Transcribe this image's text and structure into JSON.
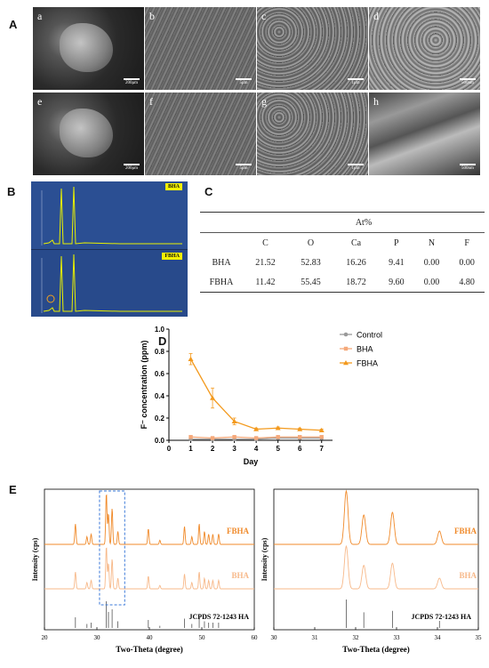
{
  "panels": {
    "A": "A",
    "B": "B",
    "C": "C",
    "D": "D",
    "E": "E"
  },
  "sem_images": [
    {
      "label": "a",
      "scale": "200μm",
      "tone": "dark-smooth"
    },
    {
      "label": "b",
      "scale": "5μm",
      "tone": "rough"
    },
    {
      "label": "c",
      "scale": "1μm",
      "tone": "grainy"
    },
    {
      "label": "d",
      "scale": "500nm",
      "tone": "grainy-light"
    },
    {
      "label": "e",
      "scale": "200μm",
      "tone": "dark-smooth"
    },
    {
      "label": "f",
      "scale": "5μm",
      "tone": "rough"
    },
    {
      "label": "g",
      "scale": "1μm",
      "tone": "grainy"
    },
    {
      "label": "h",
      "scale": "500nm",
      "tone": "crystal"
    }
  ],
  "eds": {
    "top_label": "BHA",
    "bottom_label": "FBHA",
    "background": "#2a4d8f",
    "trace_color": "#e8f000"
  },
  "table": {
    "group_header": "At%",
    "columns": [
      "C",
      "O",
      "Ca",
      "P",
      "N",
      "F"
    ],
    "rows": [
      {
        "name": "BHA",
        "values": [
          "21.52",
          "52.83",
          "16.26",
          "9.41",
          "0.00",
          "0.00"
        ]
      },
      {
        "name": "FBHA",
        "values": [
          "11.42",
          "55.45",
          "18.72",
          "9.60",
          "0.00",
          "4.80"
        ]
      }
    ]
  },
  "chart_data": [
    {
      "type": "line",
      "panel": "D",
      "xlabel": "Day",
      "ylabel": "F⁻ concentration (ppm)",
      "x": [
        1,
        2,
        3,
        4,
        5,
        6,
        7
      ],
      "xticks": [
        "0",
        "1",
        "2",
        "3",
        "4",
        "5",
        "6",
        "7"
      ],
      "yticks": [
        "0.0",
        "0.2",
        "0.4",
        "0.6",
        "0.8",
        "1.0"
      ],
      "xlim": [
        0,
        7.5
      ],
      "ylim": [
        0,
        1.0
      ],
      "legend_position": "top-right",
      "series": [
        {
          "name": "Control",
          "color": "#999999",
          "marker": "circle",
          "values": [
            0.01,
            0.01,
            0.01,
            0.01,
            0.02,
            0.02,
            0.02
          ],
          "errors": [
            0.005,
            0.005,
            0.005,
            0.005,
            0.005,
            0.005,
            0.005
          ]
        },
        {
          "name": "BHA",
          "color": "#f5a97a",
          "marker": "square",
          "values": [
            0.03,
            0.02,
            0.03,
            0.02,
            0.03,
            0.03,
            0.03
          ],
          "errors": [
            0.01,
            0.01,
            0.01,
            0.01,
            0.01,
            0.01,
            0.01
          ]
        },
        {
          "name": "FBHA",
          "color": "#f39a1e",
          "marker": "triangle",
          "values": [
            0.73,
            0.38,
            0.17,
            0.1,
            0.11,
            0.1,
            0.09
          ],
          "errors": [
            0.05,
            0.09,
            0.03,
            0.01,
            0.01,
            0.01,
            0.01
          ]
        }
      ]
    },
    {
      "type": "line",
      "panel": "E-left",
      "xlabel": "Two-Theta (degree)",
      "ylabel": "Intensity (cps)",
      "xlim": [
        20,
        60
      ],
      "xticks": [
        "20",
        "30",
        "40",
        "50",
        "60"
      ],
      "series": [
        {
          "name": "FBHA",
          "color": "#f08a2a"
        },
        {
          "name": "BHA",
          "color": "#f7b98a"
        }
      ],
      "reference_label": "JCPDS 72-1243 HA",
      "reference_peaks": [
        25.9,
        28.1,
        28.9,
        31.8,
        32.2,
        32.9,
        34.0,
        39.8,
        42.0,
        46.7,
        48.1,
        49.5,
        50.5,
        51.3,
        52.1,
        53.2
      ],
      "reference_heights": [
        0.4,
        0.15,
        0.2,
        1.0,
        0.6,
        0.7,
        0.25,
        0.3,
        0.08,
        0.35,
        0.15,
        0.4,
        0.25,
        0.2,
        0.2,
        0.2
      ]
    },
    {
      "type": "line",
      "panel": "E-right",
      "xlabel": "Two-Theta (degree)",
      "ylabel": "Intensity (cps)",
      "xlim": [
        30,
        35
      ],
      "xticks": [
        "30",
        "31",
        "32",
        "33",
        "34",
        "35"
      ],
      "series": [
        {
          "name": "FBHA",
          "color": "#f08a2a"
        },
        {
          "name": "BHA",
          "color": "#f7b98a"
        }
      ],
      "reference_label": "JCPDS 72-1243 HA",
      "reference_peaks": [
        31.77,
        32.2,
        32.9,
        34.05
      ],
      "reference_heights": [
        1.0,
        0.55,
        0.6,
        0.25
      ]
    }
  ]
}
